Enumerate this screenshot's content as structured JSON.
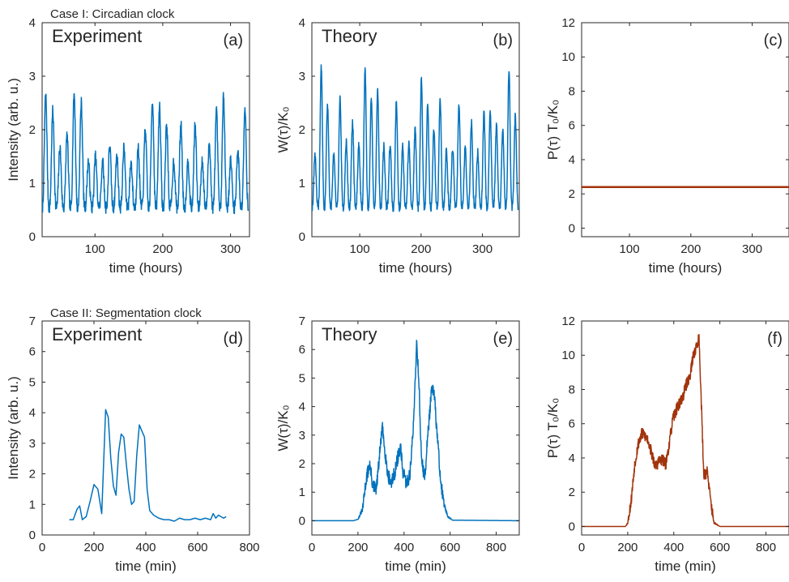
{
  "figure": {
    "case1_title": "Case I: Circadian clock",
    "case2_title": "Case II: Segmentation clock"
  },
  "chart_data": [
    {
      "id": "a",
      "type": "line",
      "panel_label": "(a)",
      "inner_label": "Experiment",
      "xlabel": "time (hours)",
      "ylabel": "Intensity (arb. u.)",
      "xlim": [
        22,
        328
      ],
      "ylim": [
        0,
        4
      ],
      "xticks": [
        100,
        200,
        300
      ],
      "yticks": [
        0,
        1,
        2,
        3,
        4
      ],
      "color": "#0072BD",
      "signal": {
        "kind": "oscillation",
        "x_start": 22,
        "x_end": 326,
        "period": 10.5,
        "base": 0.55,
        "amp_min": 0.8,
        "amp_max": 2.3,
        "seed": 7,
        "samples": 900,
        "noise": 0.12
      }
    },
    {
      "id": "b",
      "type": "line",
      "panel_label": "(b)",
      "inner_label": "Theory",
      "xlabel": "time (hours)",
      "ylabel": "W(τ)/K₀",
      "xlim": [
        22,
        360
      ],
      "ylim": [
        0,
        4
      ],
      "xticks": [
        100,
        200,
        300
      ],
      "yticks": [
        0,
        1,
        2,
        3,
        4
      ],
      "color": "#0072BD",
      "signal": {
        "kind": "oscillation",
        "x_start": 22,
        "x_end": 358,
        "period": 10.2,
        "base": 0.55,
        "amp_min": 1.0,
        "amp_max": 2.9,
        "seed": 19,
        "samples": 1000,
        "noise": 0.08
      }
    },
    {
      "id": "c",
      "type": "line",
      "panel_label": "(c)",
      "inner_label": "",
      "xlabel": "time (hours)",
      "ylabel": "P(τ) T₀/K₀",
      "xlim": [
        22,
        360
      ],
      "ylim": [
        -0.5,
        12
      ],
      "xticks": [
        100,
        200,
        300
      ],
      "yticks": [
        0,
        2,
        4,
        6,
        8,
        10,
        12
      ],
      "color": "#A2340C",
      "x": [
        22,
        360
      ],
      "y": [
        2.4,
        2.4
      ]
    },
    {
      "id": "d",
      "type": "line",
      "panel_label": "(d)",
      "inner_label": "Experiment",
      "xlabel": "time (min)",
      "ylabel": "Intensity (arb. u.)",
      "xlim": [
        0,
        800
      ],
      "ylim": [
        0,
        7
      ],
      "xticks": [
        0,
        200,
        400,
        600,
        800
      ],
      "yticks": [
        0,
        1,
        2,
        3,
        4,
        5,
        6,
        7
      ],
      "color": "#0072BD",
      "x": [
        105,
        120,
        135,
        145,
        155,
        170,
        185,
        200,
        215,
        230,
        245,
        255,
        265,
        275,
        285,
        295,
        305,
        315,
        325,
        335,
        345,
        355,
        365,
        375,
        385,
        395,
        405,
        415,
        430,
        450,
        470,
        490,
        510,
        530,
        550,
        570,
        590,
        610,
        630,
        650,
        660,
        670,
        680,
        690,
        700,
        710
      ],
      "y": [
        0.5,
        0.5,
        0.85,
        0.95,
        0.5,
        0.6,
        1.1,
        1.65,
        1.5,
        0.7,
        4.1,
        3.85,
        2.5,
        1.6,
        1.3,
        2.7,
        3.3,
        3.2,
        2.3,
        1.5,
        1.0,
        1.1,
        2.6,
        3.6,
        3.4,
        3.2,
        1.5,
        0.8,
        0.65,
        0.55,
        0.5,
        0.5,
        0.45,
        0.55,
        0.5,
        0.5,
        0.55,
        0.5,
        0.55,
        0.5,
        0.7,
        0.55,
        0.65,
        0.6,
        0.55,
        0.6
      ]
    },
    {
      "id": "e",
      "type": "line",
      "panel_label": "(e)",
      "inner_label": "Theory",
      "xlabel": "time (min)",
      "ylabel": "W(τ)/K₀",
      "xlim": [
        0,
        900
      ],
      "ylim": [
        -0.5,
        7
      ],
      "xticks": [
        0,
        200,
        400,
        600,
        800
      ],
      "yticks": [
        0,
        1,
        2,
        3,
        4,
        5,
        6,
        7
      ],
      "color": "#0072BD",
      "envelope": {
        "x": [
          0,
          180,
          200,
          220,
          235,
          250,
          265,
          280,
          295,
          305,
          315,
          330,
          345,
          360,
          375,
          385,
          395,
          410,
          425,
          440,
          455,
          465,
          475,
          490,
          505,
          520,
          530,
          545,
          560,
          575,
          590,
          610,
          900
        ],
        "y": [
          0,
          0,
          0.05,
          0.4,
          1.4,
          2.0,
          1.2,
          1.1,
          2.4,
          3.3,
          2.6,
          1.6,
          1.3,
          1.7,
          2.3,
          2.5,
          1.7,
          1.3,
          1.6,
          3.2,
          6.3,
          4.8,
          2.2,
          1.5,
          3.2,
          4.6,
          4.5,
          2.9,
          1.3,
          0.5,
          0.15,
          0.02,
          0
        ]
      },
      "noise": 0.25,
      "seed": 31
    },
    {
      "id": "f",
      "type": "line",
      "panel_label": "(f)",
      "inner_label": "",
      "xlabel": "time (min)",
      "ylabel": "P(τ) T₀/K₀",
      "xlim": [
        0,
        900
      ],
      "ylim": [
        -0.5,
        12
      ],
      "xticks": [
        0,
        200,
        400,
        600,
        800
      ],
      "yticks": [
        0,
        2,
        4,
        6,
        8,
        10,
        12
      ],
      "color": "#A2340C",
      "envelope": {
        "x": [
          0,
          190,
          200,
          215,
          230,
          245,
          260,
          275,
          290,
          305,
          320,
          335,
          350,
          365,
          380,
          395,
          410,
          425,
          440,
          455,
          470,
          485,
          500,
          510,
          520,
          530,
          545,
          560,
          575,
          600,
          900
        ],
        "y": [
          0,
          0,
          0.2,
          1.5,
          3.6,
          4.8,
          5.4,
          5.3,
          5.0,
          4.2,
          3.5,
          3.8,
          3.9,
          3.6,
          4.8,
          6.2,
          6.8,
          7.2,
          7.6,
          8.3,
          8.8,
          10.0,
          10.6,
          11.0,
          7.0,
          3.0,
          3.2,
          1.5,
          0.2,
          0,
          0
        ]
      },
      "noise": 0.35,
      "seed": 53
    }
  ]
}
